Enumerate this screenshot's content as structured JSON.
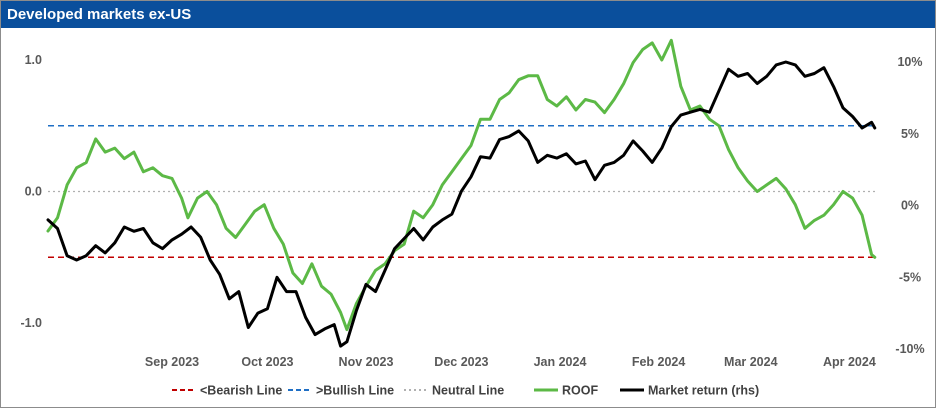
{
  "title": "Developed markets ex-US",
  "chart_data": {
    "type": "line",
    "title": "Developed markets ex-US",
    "x_domain": [
      "2023-08-08",
      "2024-04-25"
    ],
    "ylim_left": [
      -1.2,
      1.0
    ],
    "ylim_right": [
      -10,
      10
    ],
    "y_ticks_left": [
      {
        "value": 1.0,
        "label": "1.0"
      },
      {
        "value": 0.0,
        "label": "0.0"
      },
      {
        "value": -1.0,
        "label": "-1.0"
      }
    ],
    "y_ticks_right": [
      {
        "value": 10,
        "label": "10%"
      },
      {
        "value": 5,
        "label": "5%"
      },
      {
        "value": 0,
        "label": "0%"
      },
      {
        "value": -5,
        "label": "-5%"
      },
      {
        "value": -10,
        "label": "-10%"
      }
    ],
    "x_ticks": [
      {
        "date": "2023-09-01",
        "label": "Sep 2023"
      },
      {
        "date": "2023-10-01",
        "label": "Oct 2023"
      },
      {
        "date": "2023-11-01",
        "label": "Nov 2023"
      },
      {
        "date": "2023-12-01",
        "label": "Dec 2023"
      },
      {
        "date": "2024-01-01",
        "label": "Jan 2024"
      },
      {
        "date": "2024-02-01",
        "label": "Feb 2024"
      },
      {
        "date": "2024-03-01",
        "label": "Mar 2024"
      },
      {
        "date": "2024-04-01",
        "label": "Apr 2024"
      }
    ],
    "reference_lines": [
      {
        "name": "<Bearish Line",
        "value": -0.5,
        "color": "#c00000",
        "style": "dashed"
      },
      {
        "name": ">Bullish Line",
        "value": 0.5,
        "color": "#1f6fc5",
        "style": "dashed"
      },
      {
        "name": "Neutral Line",
        "value": 0.0,
        "color": "#b0b0b0",
        "style": "dotted"
      }
    ],
    "series": [
      {
        "name": "ROOF",
        "axis": "left",
        "color": "#5cb946",
        "points": [
          [
            "2023-08-08",
            -0.3
          ],
          [
            "2023-08-11",
            -0.2
          ],
          [
            "2023-08-14",
            0.05
          ],
          [
            "2023-08-17",
            0.18
          ],
          [
            "2023-08-20",
            0.22
          ],
          [
            "2023-08-23",
            0.4
          ],
          [
            "2023-08-26",
            0.3
          ],
          [
            "2023-08-29",
            0.33
          ],
          [
            "2023-09-01",
            0.25
          ],
          [
            "2023-09-04",
            0.3
          ],
          [
            "2023-09-07",
            0.15
          ],
          [
            "2023-09-10",
            0.18
          ],
          [
            "2023-09-13",
            0.12
          ],
          [
            "2023-09-16",
            0.1
          ],
          [
            "2023-09-19",
            -0.05
          ],
          [
            "2023-09-21",
            -0.2
          ],
          [
            "2023-09-24",
            -0.05
          ],
          [
            "2023-09-27",
            0.0
          ],
          [
            "2023-09-30",
            -0.1
          ],
          [
            "2023-10-03",
            -0.28
          ],
          [
            "2023-10-06",
            -0.35
          ],
          [
            "2023-10-09",
            -0.25
          ],
          [
            "2023-10-12",
            -0.15
          ],
          [
            "2023-10-15",
            -0.1
          ],
          [
            "2023-10-18",
            -0.28
          ],
          [
            "2023-10-21",
            -0.4
          ],
          [
            "2023-10-24",
            -0.62
          ],
          [
            "2023-10-27",
            -0.7
          ],
          [
            "2023-10-30",
            -0.55
          ],
          [
            "2023-11-02",
            -0.72
          ],
          [
            "2023-11-05",
            -0.78
          ],
          [
            "2023-11-08",
            -0.92
          ],
          [
            "2023-11-10",
            -1.05
          ],
          [
            "2023-11-13",
            -0.85
          ],
          [
            "2023-11-16",
            -0.72
          ],
          [
            "2023-11-19",
            -0.6
          ],
          [
            "2023-11-22",
            -0.55
          ],
          [
            "2023-11-25",
            -0.45
          ],
          [
            "2023-11-28",
            -0.4
          ],
          [
            "2023-12-01",
            -0.15
          ],
          [
            "2023-12-04",
            -0.2
          ],
          [
            "2023-12-07",
            -0.1
          ],
          [
            "2023-12-10",
            0.05
          ],
          [
            "2023-12-13",
            0.15
          ],
          [
            "2023-12-16",
            0.25
          ],
          [
            "2023-12-19",
            0.35
          ],
          [
            "2023-12-22",
            0.55
          ],
          [
            "2023-12-25",
            0.55
          ],
          [
            "2023-12-28",
            0.7
          ],
          [
            "2023-12-31",
            0.75
          ],
          [
            "2024-01-03",
            0.85
          ],
          [
            "2024-01-06",
            0.88
          ],
          [
            "2024-01-09",
            0.88
          ],
          [
            "2024-01-12",
            0.7
          ],
          [
            "2024-01-15",
            0.65
          ],
          [
            "2024-01-18",
            0.72
          ],
          [
            "2024-01-21",
            0.62
          ],
          [
            "2024-01-24",
            0.7
          ],
          [
            "2024-01-27",
            0.68
          ],
          [
            "2024-01-30",
            0.6
          ],
          [
            "2024-02-02",
            0.7
          ],
          [
            "2024-02-05",
            0.82
          ],
          [
            "2024-02-08",
            0.98
          ],
          [
            "2024-02-11",
            1.08
          ],
          [
            "2024-02-14",
            1.13
          ],
          [
            "2024-02-17",
            1.0
          ],
          [
            "2024-02-20",
            1.15
          ],
          [
            "2024-02-23",
            0.8
          ],
          [
            "2024-02-26",
            0.62
          ],
          [
            "2024-02-29",
            0.65
          ],
          [
            "2024-03-03",
            0.55
          ],
          [
            "2024-03-06",
            0.5
          ],
          [
            "2024-03-09",
            0.32
          ],
          [
            "2024-03-12",
            0.18
          ],
          [
            "2024-03-15",
            0.08
          ],
          [
            "2024-03-18",
            0.0
          ],
          [
            "2024-03-21",
            0.05
          ],
          [
            "2024-03-24",
            0.1
          ],
          [
            "2024-03-27",
            0.02
          ],
          [
            "2024-03-30",
            -0.1
          ],
          [
            "2024-04-02",
            -0.28
          ],
          [
            "2024-04-05",
            -0.22
          ],
          [
            "2024-04-08",
            -0.18
          ],
          [
            "2024-04-11",
            -0.1
          ],
          [
            "2024-04-14",
            0.0
          ],
          [
            "2024-04-17",
            -0.05
          ],
          [
            "2024-04-20",
            -0.18
          ],
          [
            "2024-04-23",
            -0.48
          ],
          [
            "2024-04-24",
            -0.5
          ]
        ]
      },
      {
        "name": "Market return (rhs)",
        "axis": "right",
        "color": "#000000",
        "points": [
          [
            "2023-08-08",
            -1.0
          ],
          [
            "2023-08-11",
            -1.6
          ],
          [
            "2023-08-14",
            -3.5
          ],
          [
            "2023-08-17",
            -3.8
          ],
          [
            "2023-08-20",
            -3.5
          ],
          [
            "2023-08-23",
            -2.8
          ],
          [
            "2023-08-26",
            -3.3
          ],
          [
            "2023-08-29",
            -2.6
          ],
          [
            "2023-09-01",
            -1.5
          ],
          [
            "2023-09-04",
            -1.8
          ],
          [
            "2023-09-07",
            -1.6
          ],
          [
            "2023-09-10",
            -2.6
          ],
          [
            "2023-09-13",
            -3.0
          ],
          [
            "2023-09-16",
            -2.4
          ],
          [
            "2023-09-19",
            -2.0
          ],
          [
            "2023-09-22",
            -1.5
          ],
          [
            "2023-09-25",
            -2.2
          ],
          [
            "2023-09-28",
            -3.8
          ],
          [
            "2023-10-01",
            -4.8
          ],
          [
            "2023-10-04",
            -6.5
          ],
          [
            "2023-10-07",
            -6.0
          ],
          [
            "2023-10-10",
            -8.5
          ],
          [
            "2023-10-13",
            -7.5
          ],
          [
            "2023-10-16",
            -7.2
          ],
          [
            "2023-10-19",
            -5.0
          ],
          [
            "2023-10-22",
            -6.0
          ],
          [
            "2023-10-25",
            -6.0
          ],
          [
            "2023-10-28",
            -7.8
          ],
          [
            "2023-10-31",
            -9.0
          ],
          [
            "2023-11-03",
            -8.6
          ],
          [
            "2023-11-06",
            -8.3
          ],
          [
            "2023-11-08",
            -9.8
          ],
          [
            "2023-11-10",
            -9.5
          ],
          [
            "2023-11-13",
            -7.3
          ],
          [
            "2023-11-16",
            -5.5
          ],
          [
            "2023-11-19",
            -6.0
          ],
          [
            "2023-11-22",
            -4.5
          ],
          [
            "2023-11-25",
            -3.0
          ],
          [
            "2023-11-28",
            -2.3
          ],
          [
            "2023-12-01",
            -1.6
          ],
          [
            "2023-12-04",
            -2.4
          ],
          [
            "2023-12-07",
            -1.5
          ],
          [
            "2023-12-10",
            -1.0
          ],
          [
            "2023-12-13",
            -0.6
          ],
          [
            "2023-12-16",
            1.0
          ],
          [
            "2023-12-19",
            2.0
          ],
          [
            "2023-12-22",
            3.4
          ],
          [
            "2023-12-25",
            3.3
          ],
          [
            "2023-12-28",
            4.6
          ],
          [
            "2023-12-31",
            4.8
          ],
          [
            "2024-01-03",
            5.2
          ],
          [
            "2024-01-06",
            4.5
          ],
          [
            "2024-01-09",
            3.0
          ],
          [
            "2024-01-12",
            3.5
          ],
          [
            "2024-01-15",
            3.3
          ],
          [
            "2024-01-18",
            3.6
          ],
          [
            "2024-01-21",
            2.9
          ],
          [
            "2024-01-24",
            3.1
          ],
          [
            "2024-01-27",
            1.8
          ],
          [
            "2024-01-30",
            2.8
          ],
          [
            "2024-02-02",
            3.0
          ],
          [
            "2024-02-05",
            3.5
          ],
          [
            "2024-02-08",
            4.5
          ],
          [
            "2024-02-11",
            3.8
          ],
          [
            "2024-02-14",
            3.0
          ],
          [
            "2024-02-17",
            4.0
          ],
          [
            "2024-02-20",
            5.5
          ],
          [
            "2024-02-23",
            6.3
          ],
          [
            "2024-02-26",
            6.5
          ],
          [
            "2024-02-29",
            6.7
          ],
          [
            "2024-03-03",
            6.5
          ],
          [
            "2024-03-06",
            8.0
          ],
          [
            "2024-03-09",
            9.5
          ],
          [
            "2024-03-12",
            9.0
          ],
          [
            "2024-03-15",
            9.2
          ],
          [
            "2024-03-18",
            8.5
          ],
          [
            "2024-03-21",
            9.0
          ],
          [
            "2024-03-24",
            9.8
          ],
          [
            "2024-03-27",
            10.0
          ],
          [
            "2024-03-30",
            9.8
          ],
          [
            "2024-04-02",
            9.0
          ],
          [
            "2024-04-05",
            9.2
          ],
          [
            "2024-04-08",
            9.6
          ],
          [
            "2024-04-11",
            8.3
          ],
          [
            "2024-04-14",
            6.8
          ],
          [
            "2024-04-17",
            6.2
          ],
          [
            "2024-04-20",
            5.4
          ],
          [
            "2024-04-23",
            5.8
          ],
          [
            "2024-04-24",
            5.4
          ]
        ]
      }
    ],
    "legend": {
      "position": "bottom",
      "items": [
        {
          "label": "<Bearish Line",
          "color": "#c00000",
          "style": "dashed"
        },
        {
          "label": ">Bullish Line",
          "color": "#1f6fc5",
          "style": "dashed"
        },
        {
          "label": "Neutral Line",
          "color": "#b0b0b0",
          "style": "dotted"
        },
        {
          "label": "ROOF",
          "color": "#5cb946",
          "style": "solid"
        },
        {
          "label": "Market return (rhs)",
          "color": "#000000",
          "style": "solid"
        }
      ]
    },
    "grid": false
  }
}
